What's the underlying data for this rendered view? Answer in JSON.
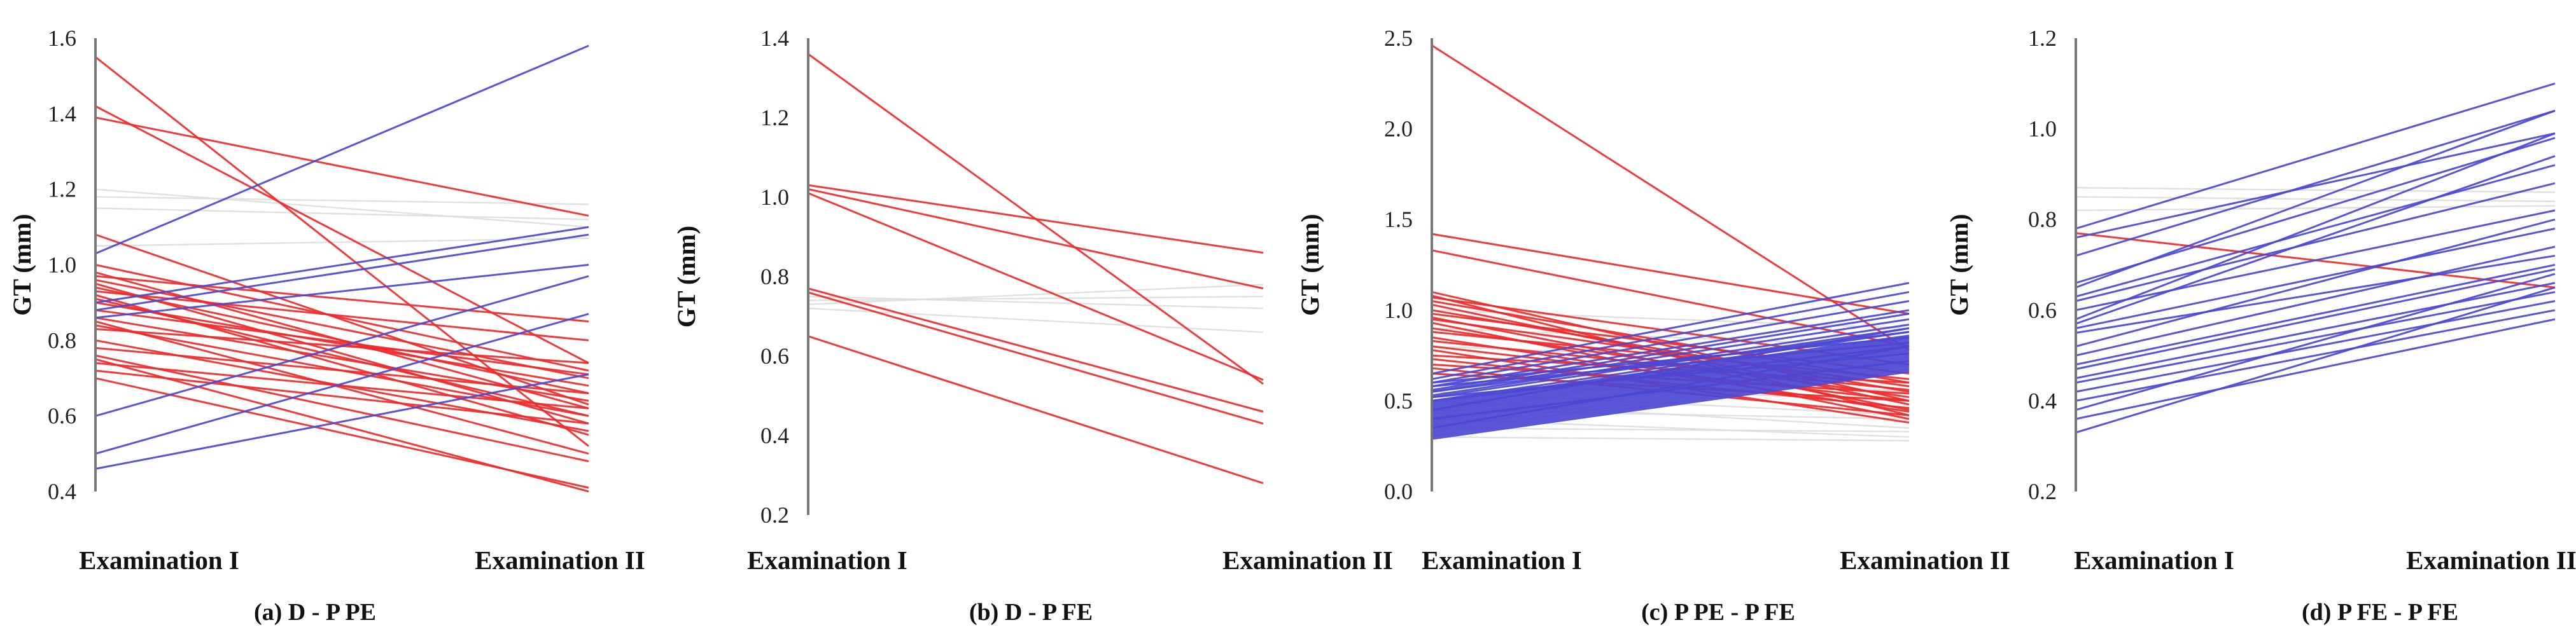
{
  "colors": {
    "decrease": "#ee2a2a",
    "increase": "#4b47d4",
    "nochange": "#dedede",
    "axis": "#777777"
  },
  "chart_data": [
    {
      "type": "line",
      "title": "(a) D - P PE",
      "ylabel": "GT (mm)",
      "ylim": [
        0.4,
        1.6
      ],
      "yticks": [
        "0.4",
        "0.6",
        "0.8",
        "1.0",
        "1.2",
        "1.4",
        "1.6"
      ],
      "categories": [
        "Examination I",
        "Examination II"
      ],
      "series": [
        {
          "name": "decrease",
          "lines": [
            [
              1.55,
              0.52
            ],
            [
              1.42,
              0.74
            ],
            [
              1.39,
              1.13
            ],
            [
              1.08,
              0.63
            ],
            [
              1.0,
              0.72
            ],
            [
              0.98,
              0.62
            ],
            [
              0.97,
              0.85
            ],
            [
              0.96,
              0.7
            ],
            [
              0.95,
              0.58
            ],
            [
              0.94,
              0.66
            ],
            [
              0.93,
              0.8
            ],
            [
              0.92,
              0.55
            ],
            [
              0.91,
              0.6
            ],
            [
              0.9,
              0.68
            ],
            [
              0.88,
              0.71
            ],
            [
              0.86,
              0.64
            ],
            [
              0.85,
              0.5
            ],
            [
              0.84,
              0.6
            ],
            [
              0.83,
              0.74
            ],
            [
              0.8,
              0.56
            ],
            [
              0.78,
              0.66
            ],
            [
              0.76,
              0.48
            ],
            [
              0.75,
              0.4
            ],
            [
              0.74,
              0.62
            ],
            [
              0.72,
              0.58
            ],
            [
              0.7,
              0.41
            ]
          ]
        },
        {
          "name": "increase",
          "lines": [
            [
              1.03,
              1.58
            ],
            [
              0.9,
              1.1
            ],
            [
              0.88,
              1.08
            ],
            [
              0.86,
              1.0
            ],
            [
              0.6,
              0.97
            ],
            [
              0.5,
              0.87
            ],
            [
              0.46,
              0.71
            ]
          ]
        },
        {
          "name": "nochange",
          "lines": [
            [
              1.2,
              1.1
            ],
            [
              1.18,
              1.16
            ],
            [
              1.15,
              1.12
            ],
            [
              1.05,
              1.07
            ]
          ]
        }
      ]
    },
    {
      "type": "line",
      "title": "(b) D - P FE",
      "ylabel": "GT (mm)",
      "ylim": [
        0.2,
        1.4
      ],
      "yticks": [
        "0.2",
        "0.4",
        "0.6",
        "0.8",
        "1.0",
        "1.2",
        "1.4"
      ],
      "categories": [
        "Examination I",
        "Examination II"
      ],
      "series": [
        {
          "name": "decrease",
          "lines": [
            [
              1.36,
              0.53
            ],
            [
              1.03,
              0.86
            ],
            [
              1.02,
              0.77
            ],
            [
              1.01,
              0.54
            ],
            [
              0.77,
              0.46
            ],
            [
              0.76,
              0.43
            ],
            [
              0.65,
              0.28
            ]
          ]
        },
        {
          "name": "increase",
          "lines": []
        },
        {
          "name": "nochange",
          "lines": [
            [
              0.73,
              0.78
            ],
            [
              0.74,
              0.75
            ],
            [
              0.75,
              0.72
            ],
            [
              0.72,
              0.66
            ]
          ]
        }
      ]
    },
    {
      "type": "line",
      "title": "(c) P PE - P FE",
      "ylabel": "GT (mm)",
      "ylim": [
        0.0,
        2.5
      ],
      "yticks": [
        "0.0",
        "0.5",
        "1.0",
        "1.5",
        "2.0",
        "2.5"
      ],
      "categories": [
        "Examination I",
        "Examination II"
      ],
      "series": [
        {
          "name": "decrease",
          "lines": [
            [
              2.46,
              0.78
            ],
            [
              1.42,
              0.98
            ],
            [
              1.33,
              0.8
            ],
            [
              1.1,
              0.5
            ],
            [
              1.08,
              0.42
            ],
            [
              1.07,
              0.7
            ],
            [
              1.05,
              0.6
            ],
            [
              1.03,
              0.48
            ],
            [
              1.0,
              0.55
            ],
            [
              0.98,
              0.65
            ],
            [
              0.96,
              0.45
            ],
            [
              0.95,
              0.58
            ],
            [
              0.93,
              0.4
            ],
            [
              0.9,
              0.52
            ],
            [
              0.88,
              0.62
            ],
            [
              0.85,
              0.44
            ],
            [
              0.83,
              0.56
            ],
            [
              0.8,
              0.5
            ],
            [
              0.78,
              0.38
            ],
            [
              0.75,
              0.6
            ],
            [
              0.73,
              0.46
            ],
            [
              0.7,
              0.54
            ],
            [
              0.68,
              0.42
            ],
            [
              0.65,
              0.5
            ]
          ]
        },
        {
          "name": "increase",
          "lines": [
            [
              0.65,
              1.15
            ],
            [
              0.62,
              1.1
            ],
            [
              0.6,
              1.05
            ],
            [
              0.58,
              1.0
            ],
            [
              0.56,
              0.98
            ],
            [
              0.55,
              0.95
            ],
            [
              0.53,
              0.92
            ],
            [
              0.52,
              0.9
            ],
            [
              0.5,
              0.88
            ],
            [
              0.49,
              0.86
            ],
            [
              0.48,
              0.85
            ],
            [
              0.47,
              0.84
            ],
            [
              0.46,
              0.83
            ],
            [
              0.45,
              0.82
            ],
            [
              0.44,
              0.81
            ],
            [
              0.43,
              0.8
            ],
            [
              0.42,
              0.79
            ],
            [
              0.41,
              0.78
            ],
            [
              0.4,
              0.77
            ],
            [
              0.39,
              0.76
            ],
            [
              0.38,
              0.75
            ],
            [
              0.37,
              0.74
            ],
            [
              0.36,
              0.73
            ],
            [
              0.35,
              0.72
            ],
            [
              0.34,
              0.71
            ],
            [
              0.33,
              0.7
            ],
            [
              0.32,
              0.69
            ],
            [
              0.31,
              0.68
            ],
            [
              0.3,
              0.67
            ],
            [
              0.29,
              0.66
            ],
            [
              0.6,
              0.85
            ],
            [
              0.55,
              0.88
            ],
            [
              0.5,
              0.8
            ],
            [
              0.45,
              0.9
            ],
            [
              0.4,
              0.72
            ],
            [
              0.35,
              0.8
            ],
            [
              0.58,
              0.82
            ],
            [
              0.52,
              0.76
            ]
          ]
        },
        {
          "name": "nochange",
          "lines": [
            [
              0.7,
              0.55
            ],
            [
              0.6,
              0.5
            ],
            [
              0.55,
              0.42
            ],
            [
              0.5,
              0.35
            ],
            [
              0.45,
              0.4
            ],
            [
              0.4,
              0.3
            ],
            [
              0.35,
              0.33
            ],
            [
              0.3,
              0.28
            ],
            [
              0.65,
              0.6
            ],
            [
              0.8,
              0.7
            ],
            [
              0.9,
              0.8
            ],
            [
              1.0,
              0.9
            ]
          ]
        }
      ]
    },
    {
      "type": "line",
      "title": "(d) P FE - P FE",
      "ylabel": "GT (mm)",
      "ylim": [
        0.2,
        1.2
      ],
      "yticks": [
        "0.2",
        "0.4",
        "0.6",
        "0.8",
        "1.0",
        "1.2"
      ],
      "categories": [
        "Examination I",
        "Examination II"
      ],
      "series": [
        {
          "name": "decrease",
          "lines": [
            [
              0.77,
              0.65
            ]
          ]
        },
        {
          "name": "increase",
          "lines": [
            [
              0.78,
              1.1
            ],
            [
              0.76,
              0.99
            ],
            [
              0.72,
              1.04
            ],
            [
              0.66,
              0.98
            ],
            [
              0.65,
              1.04
            ],
            [
              0.63,
              0.92
            ],
            [
              0.62,
              0.88
            ],
            [
              0.6,
              0.82
            ],
            [
              0.58,
              0.99
            ],
            [
              0.56,
              0.78
            ],
            [
              0.55,
              0.72
            ],
            [
              0.52,
              0.8
            ],
            [
              0.48,
              0.7
            ],
            [
              0.47,
              0.69
            ],
            [
              0.45,
              0.66
            ],
            [
              0.44,
              0.64
            ],
            [
              0.42,
              0.62
            ],
            [
              0.4,
              0.6
            ],
            [
              0.38,
              0.68
            ],
            [
              0.36,
              0.58
            ],
            [
              0.33,
              0.65
            ],
            [
              0.5,
              0.74
            ],
            [
              0.57,
              0.94
            ]
          ]
        },
        {
          "name": "nochange",
          "lines": [
            [
              0.87,
              0.86
            ],
            [
              0.85,
              0.84
            ],
            [
              0.82,
              0.83
            ]
          ]
        }
      ]
    }
  ]
}
